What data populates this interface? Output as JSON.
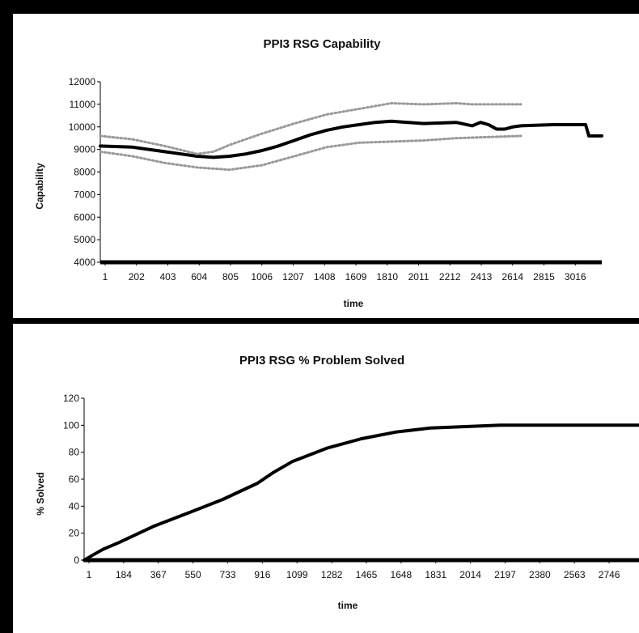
{
  "charts": [
    {
      "title": "PPI3 RSG Capability",
      "xlabel": "time",
      "ylabel": "Capability"
    },
    {
      "title": "PPI3 RSG % Problem Solved",
      "xlabel": "time",
      "ylabel": "% Solved"
    }
  ],
  "chart_data": [
    {
      "type": "line",
      "title": "PPI3 RSG Capability",
      "xlabel": "time",
      "ylabel": "Capability",
      "xlim": [
        1,
        3100
      ],
      "ylim": [
        4000,
        12000
      ],
      "yticks": [
        4000,
        5000,
        6000,
        7000,
        8000,
        9000,
        10000,
        11000,
        12000
      ],
      "xticks": [
        "1",
        "202",
        "403",
        "604",
        "805",
        "1006",
        "1207",
        "1408",
        "1609",
        "1810",
        "2011",
        "2212",
        "2413",
        "2614",
        "2815",
        "3016"
      ],
      "grid": false,
      "legend": "none",
      "series": [
        {
          "style": "solid",
          "color": "#000000",
          "x": [
            1,
            200,
            400,
            500,
            600,
            700,
            800,
            900,
            1000,
            1100,
            1200,
            1300,
            1400,
            1500,
            1600,
            1700,
            1800,
            1900,
            2000,
            2200,
            2300,
            2350,
            2400,
            2450,
            2500,
            2550,
            2600,
            2800,
            3000,
            3020,
            3100
          ],
          "y": [
            9150,
            9100,
            8900,
            8800,
            8700,
            8650,
            8700,
            8800,
            8950,
            9150,
            9400,
            9650,
            9850,
            10000,
            10100,
            10200,
            10250,
            10200,
            10150,
            10200,
            10050,
            10200,
            10100,
            9900,
            9900,
            10000,
            10050,
            10100,
            10100,
            9600,
            9600
          ]
        },
        {
          "style": "dotted",
          "color": "#999999",
          "x": [
            1,
            200,
            400,
            600,
            700,
            800,
            1000,
            1200,
            1400,
            1600,
            1800,
            2000,
            2200,
            2300,
            2600
          ],
          "y": [
            9600,
            9450,
            9150,
            8800,
            8900,
            9200,
            9700,
            10150,
            10550,
            10800,
            11050,
            11000,
            11050,
            11000,
            11000
          ]
        },
        {
          "style": "dotted",
          "color": "#999999",
          "x": [
            1,
            200,
            400,
            600,
            800,
            1000,
            1200,
            1400,
            1600,
            1800,
            2000,
            2200,
            2400,
            2600
          ],
          "y": [
            8900,
            8700,
            8400,
            8200,
            8100,
            8300,
            8700,
            9100,
            9300,
            9350,
            9400,
            9500,
            9550,
            9600
          ]
        }
      ]
    },
    {
      "type": "line",
      "title": "PPI3 RSG % Problem Solved",
      "xlabel": "time",
      "ylabel": "% Solved",
      "xlim": [
        1,
        2930
      ],
      "ylim": [
        0,
        120
      ],
      "yticks": [
        0,
        20,
        40,
        60,
        80,
        100,
        120
      ],
      "xticks": [
        "1",
        "184",
        "367",
        "550",
        "733",
        "916",
        "1099",
        "1282",
        "1465",
        "1648",
        "1831",
        "2014",
        "2197",
        "2380",
        "2563",
        "2746"
      ],
      "grid": false,
      "legend": "none",
      "series": [
        {
          "style": "solid",
          "color": "#000000",
          "x": [
            1,
            50,
            100,
            184,
            367,
            550,
            733,
            916,
            1000,
            1099,
            1282,
            1465,
            1648,
            1831,
            2014,
            2197,
            2380,
            2563,
            2746,
            2930
          ],
          "y": [
            0,
            4,
            8,
            13,
            25,
            35,
            45,
            57,
            65,
            73,
            83,
            90,
            95,
            98,
            99,
            100,
            100,
            100,
            100,
            100
          ]
        }
      ]
    }
  ]
}
